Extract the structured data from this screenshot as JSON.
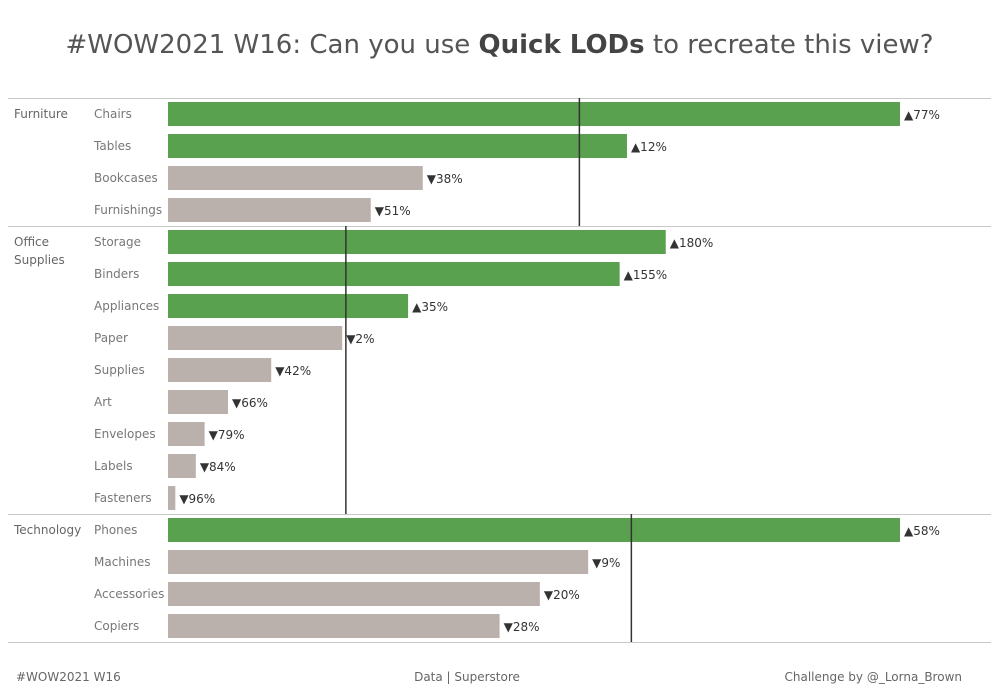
{
  "title": {
    "prefix": "#WOW2021 W16: Can you use ",
    "bold": "Quick LODs",
    "suffix": " to recreate this view?"
  },
  "footer": {
    "left": "#WOW2021 W16",
    "center": "Data | Superstore",
    "right": "Challenge by @_Lorna_Brown"
  },
  "colors": {
    "above_avg": "#59a14f",
    "below_avg": "#bab0ac",
    "reference_line": "#333333",
    "divider": "#c8c8c8"
  },
  "chart_data": {
    "type": "bar",
    "orientation": "horizontal",
    "value_axis_shown": false,
    "groups": [
      {
        "category": "Furniture",
        "average_reference_line": true,
        "items": [
          {
            "sub_category": "Chairs",
            "value": 1.0,
            "label": "▲77%",
            "above_average": true
          },
          {
            "sub_category": "Tables",
            "value": 0.627,
            "label": "▲12%",
            "above_average": true
          },
          {
            "sub_category": "Bookcases",
            "value": 0.348,
            "label": "▼38%",
            "above_average": false
          },
          {
            "sub_category": "Furnishings",
            "value": 0.277,
            "label": "▼51%",
            "above_average": false
          }
        ],
        "average": 0.562
      },
      {
        "category": "Office\nSupplies",
        "average_reference_line": true,
        "items": [
          {
            "sub_category": "Storage",
            "value": 0.68,
            "label": "▲180%",
            "above_average": true
          },
          {
            "sub_category": "Binders",
            "value": 0.617,
            "label": "▲155%",
            "above_average": true
          },
          {
            "sub_category": "Appliances",
            "value": 0.328,
            "label": "▲35%",
            "above_average": true
          },
          {
            "sub_category": "Paper",
            "value": 0.238,
            "label": "▼2%",
            "above_average": false
          },
          {
            "sub_category": "Supplies",
            "value": 0.141,
            "label": "▼42%",
            "above_average": false
          },
          {
            "sub_category": "Art",
            "value": 0.082,
            "label": "▼66%",
            "above_average": false
          },
          {
            "sub_category": "Envelopes",
            "value": 0.05,
            "label": "▼79%",
            "above_average": false
          },
          {
            "sub_category": "Labels",
            "value": 0.038,
            "label": "▼84%",
            "above_average": false
          },
          {
            "sub_category": "Fasteners",
            "value": 0.01,
            "label": "▼96%",
            "above_average": false
          }
        ],
        "average": 0.243
      },
      {
        "category": "Technology",
        "average_reference_line": true,
        "items": [
          {
            "sub_category": "Phones",
            "value": 1.0,
            "label": "▲58%",
            "above_average": true
          },
          {
            "sub_category": "Machines",
            "value": 0.574,
            "label": "▼9%",
            "above_average": false
          },
          {
            "sub_category": "Accessories",
            "value": 0.508,
            "label": "▼20%",
            "above_average": false
          },
          {
            "sub_category": "Copiers",
            "value": 0.453,
            "label": "▼28%",
            "above_average": false
          }
        ],
        "average": 0.633
      }
    ]
  }
}
